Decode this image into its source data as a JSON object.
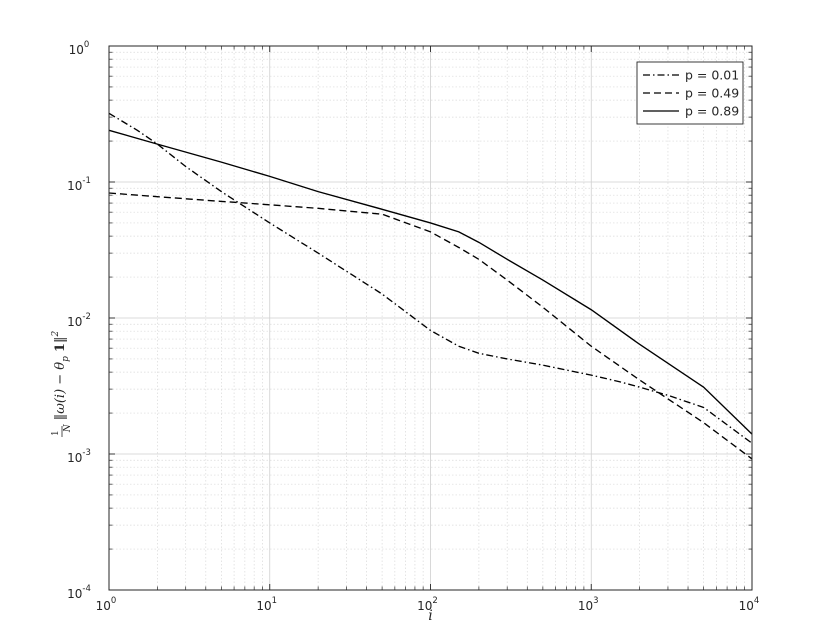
{
  "chart_data": {
    "type": "line",
    "x_scale": "log",
    "y_scale": "log",
    "xlim": [
      1,
      10000
    ],
    "ylim": [
      0.0001,
      1
    ],
    "grid": true,
    "minor_grid": true,
    "legend_position": "top-right",
    "xlabel": "i",
    "ylabel": {
      "frac_num": "1",
      "frac_den": "N",
      "body": "‖ω(i) − θ",
      "sub": "p",
      "bold": "1",
      "tail": "‖",
      "sup": "2"
    },
    "x_ticks": [
      {
        "value": 1,
        "base": "10",
        "exp": "0"
      },
      {
        "value": 10,
        "base": "10",
        "exp": "1"
      },
      {
        "value": 100,
        "base": "10",
        "exp": "2"
      },
      {
        "value": 1000,
        "base": "10",
        "exp": "3"
      },
      {
        "value": 10000,
        "base": "10",
        "exp": "4"
      }
    ],
    "y_ticks": [
      {
        "value": 0.0001,
        "base": "10",
        "exp": "-4"
      },
      {
        "value": 0.001,
        "base": "10",
        "exp": "-3"
      },
      {
        "value": 0.01,
        "base": "10",
        "exp": "-2"
      },
      {
        "value": 0.1,
        "base": "10",
        "exp": "-1"
      },
      {
        "value": 1,
        "base": "10",
        "exp": "0"
      }
    ],
    "series": [
      {
        "name": "p = 0.01",
        "style": "dashdot",
        "color": "#000000",
        "x": [
          1,
          1.5,
          2,
          3,
          5,
          10,
          20,
          50,
          100,
          150,
          200,
          300,
          500,
          1000,
          1500,
          2000,
          3000,
          5000,
          10000
        ],
        "y": [
          0.32,
          0.24,
          0.19,
          0.13,
          0.085,
          0.05,
          0.03,
          0.015,
          0.0081,
          0.0062,
          0.0055,
          0.005,
          0.0045,
          0.0038,
          0.0034,
          0.0031,
          0.0027,
          0.0022,
          0.0012
        ]
      },
      {
        "name": "p = 0.49",
        "style": "dashed",
        "color": "#000000",
        "x": [
          1,
          2,
          5,
          10,
          20,
          50,
          100,
          150,
          200,
          300,
          500,
          1000,
          2000,
          5000,
          10000
        ],
        "y": [
          0.083,
          0.078,
          0.072,
          0.068,
          0.064,
          0.058,
          0.043,
          0.033,
          0.027,
          0.019,
          0.012,
          0.0062,
          0.0035,
          0.0017,
          0.00092
        ]
      },
      {
        "name": "p = 0.89",
        "style": "solid",
        "color": "#000000",
        "x": [
          1,
          2,
          5,
          10,
          20,
          50,
          100,
          150,
          200,
          300,
          500,
          1000,
          2000,
          5000,
          10000
        ],
        "y": [
          0.24,
          0.19,
          0.14,
          0.11,
          0.085,
          0.063,
          0.05,
          0.043,
          0.036,
          0.027,
          0.019,
          0.0115,
          0.0064,
          0.0031,
          0.0014
        ]
      }
    ]
  }
}
